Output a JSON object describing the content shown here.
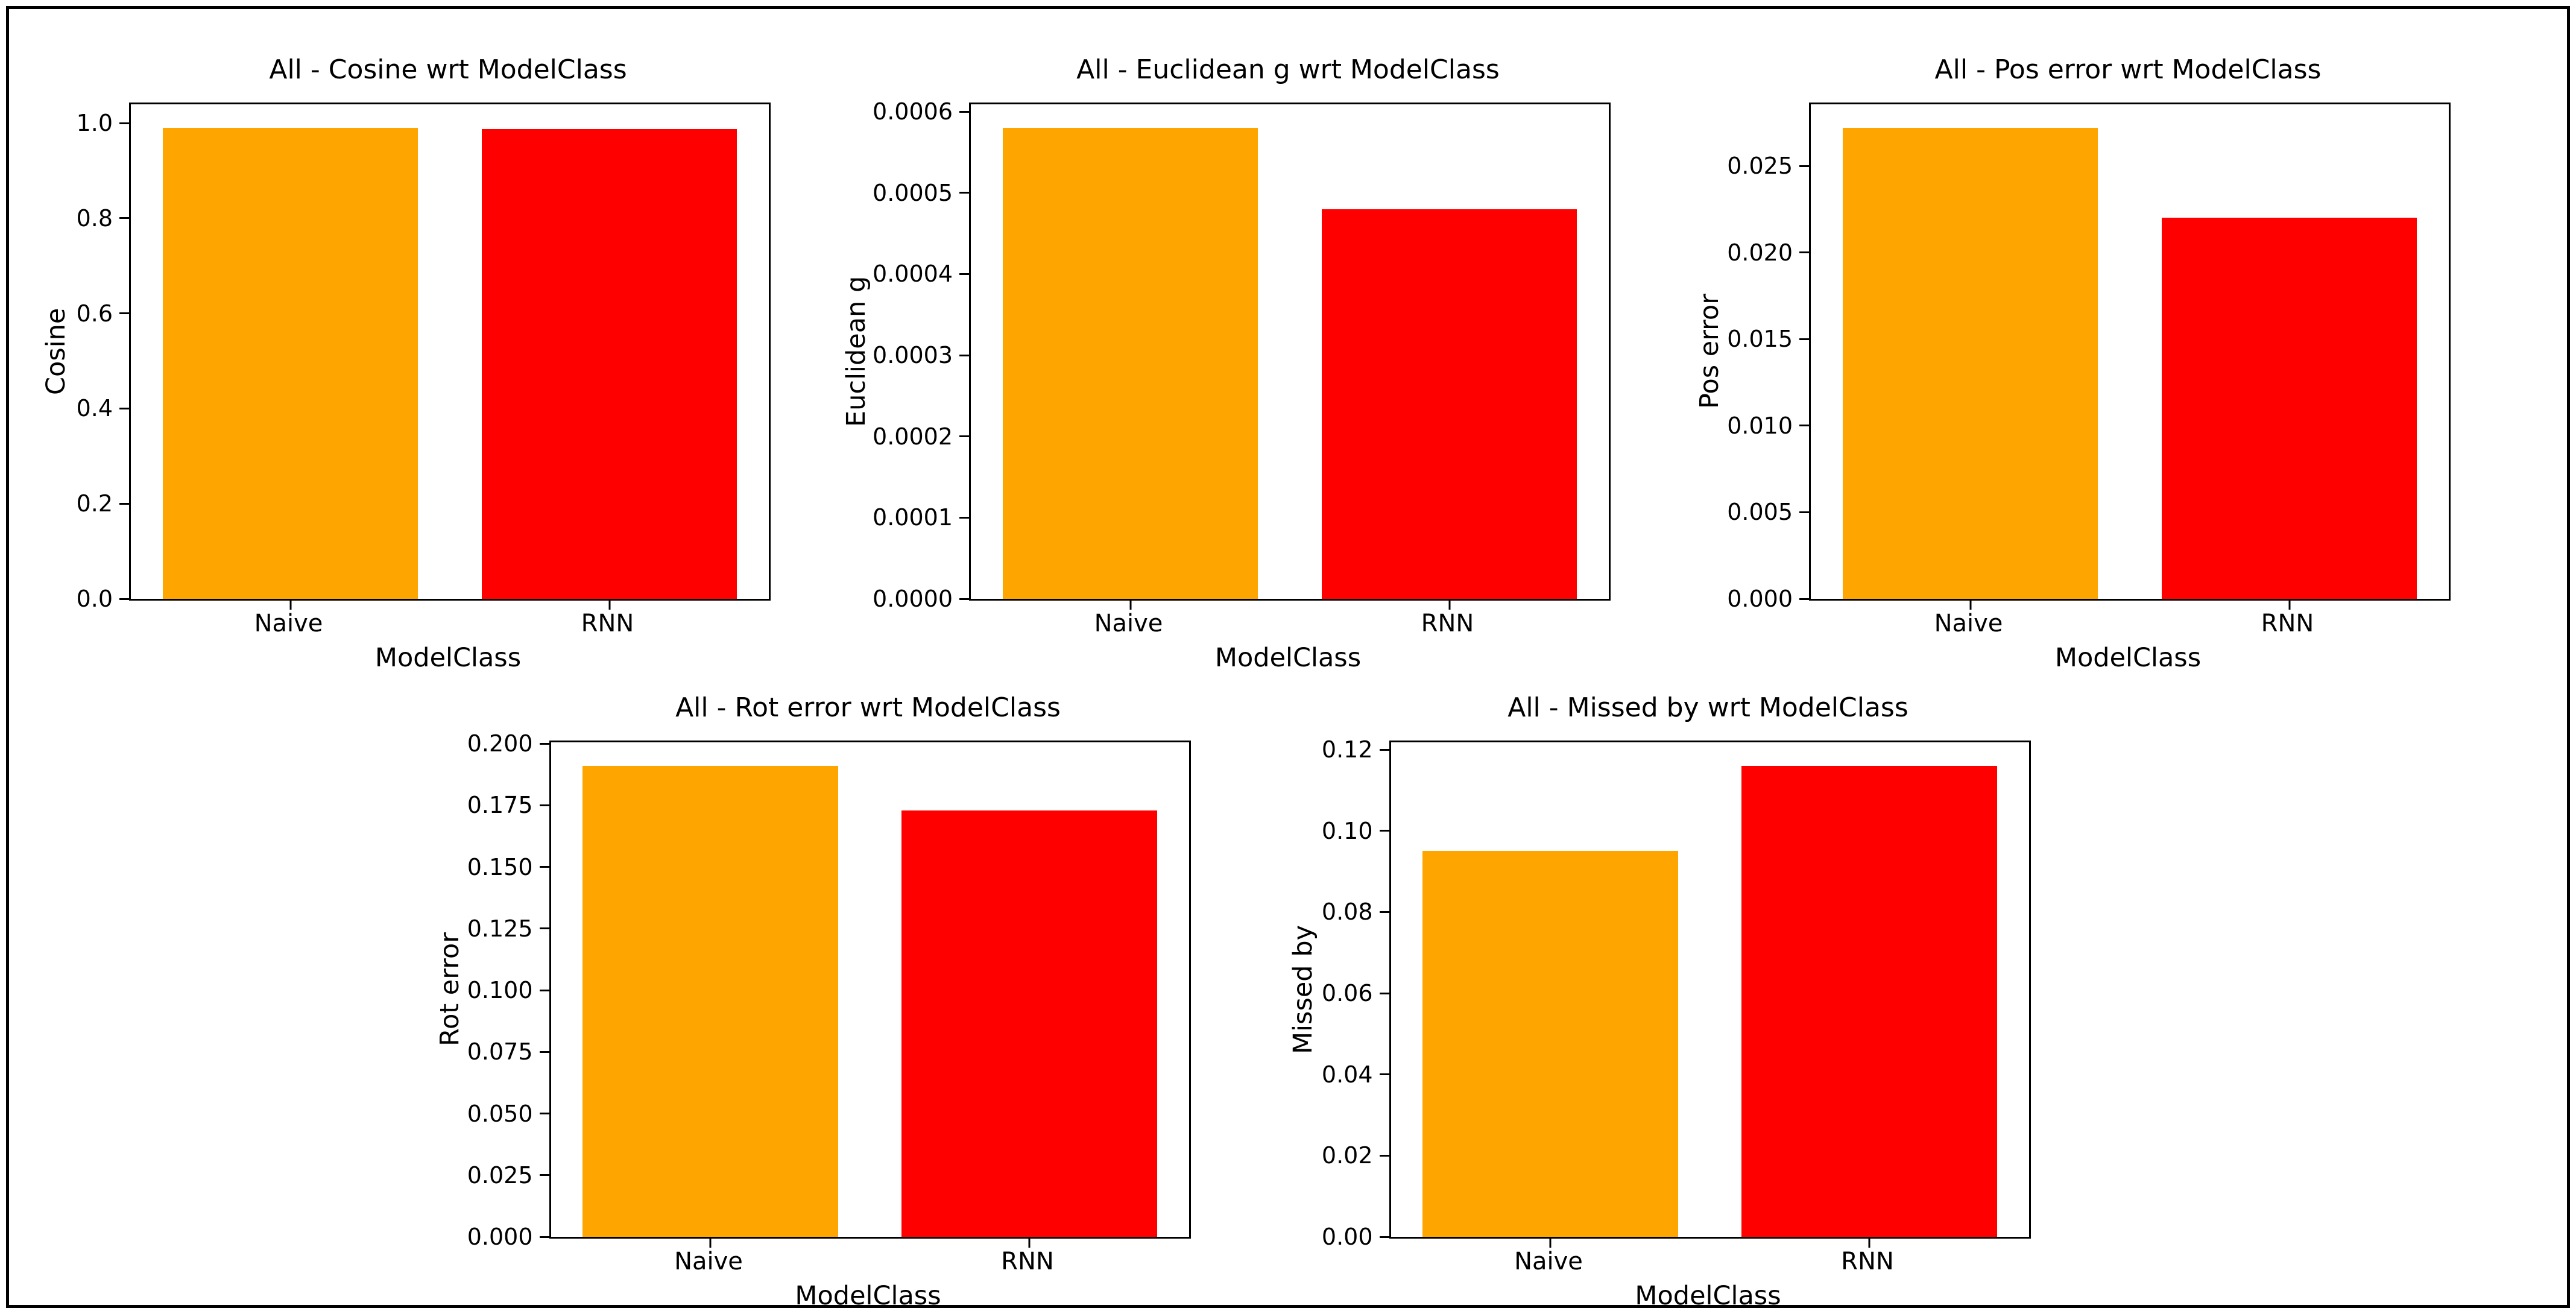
{
  "figure": {
    "background": "#FFFFFF",
    "frame_color": "#000000",
    "series_colors": {
      "Naive": "#FFA500",
      "RNN": "#FF0000"
    }
  },
  "chart_data": [
    {
      "type": "bar",
      "title": "All - Cosine wrt ModelClass",
      "xlabel": "ModelClass",
      "ylabel": "Cosine",
      "categories": [
        "Naive",
        "RNN"
      ],
      "values": [
        0.99,
        0.987
      ],
      "bar_colors": [
        "#FFA500",
        "#FF0000"
      ],
      "ytick_values": [
        0.0,
        0.2,
        0.4,
        0.6,
        0.8,
        1.0
      ],
      "ytick_labels": [
        "0.0",
        "0.2",
        "0.4",
        "0.6",
        "0.8",
        "1.0"
      ],
      "ylim": [
        0,
        1.0395
      ],
      "grid": false,
      "legend": null
    },
    {
      "type": "bar",
      "title": "All - Euclidean g wrt ModelClass",
      "xlabel": "ModelClass",
      "ylabel": "Euclidean g",
      "categories": [
        "Naive",
        "RNN"
      ],
      "values": [
        0.00058,
        0.00048
      ],
      "bar_colors": [
        "#FFA500",
        "#FF0000"
      ],
      "ytick_values": [
        0.0,
        0.0001,
        0.0002,
        0.0003,
        0.0004,
        0.0005,
        0.0006
      ],
      "ytick_labels": [
        "0.0000",
        "0.0001",
        "0.0002",
        "0.0003",
        "0.0004",
        "0.0005",
        "0.0006"
      ],
      "ylim": [
        0,
        0.000609
      ],
      "grid": false,
      "legend": null
    },
    {
      "type": "bar",
      "title": "All - Pos error wrt ModelClass",
      "xlabel": "ModelClass",
      "ylabel": "Pos error",
      "categories": [
        "Naive",
        "RNN"
      ],
      "values": [
        0.0272,
        0.022
      ],
      "bar_colors": [
        "#FFA500",
        "#FF0000"
      ],
      "ytick_values": [
        0.0,
        0.005,
        0.01,
        0.015,
        0.02,
        0.025
      ],
      "ytick_labels": [
        "0.000",
        "0.005",
        "0.010",
        "0.015",
        "0.020",
        "0.025"
      ],
      "ylim": [
        0,
        0.02856
      ],
      "grid": false,
      "legend": null
    },
    {
      "type": "bar",
      "title": "All - Rot error wrt ModelClass",
      "xlabel": "ModelClass",
      "ylabel": "Rot error",
      "categories": [
        "Naive",
        "RNN"
      ],
      "values": [
        0.191,
        0.173
      ],
      "bar_colors": [
        "#FFA500",
        "#FF0000"
      ],
      "ytick_values": [
        0.0,
        0.025,
        0.05,
        0.075,
        0.1,
        0.125,
        0.15,
        0.175,
        0.2
      ],
      "ytick_labels": [
        "0.000",
        "0.025",
        "0.050",
        "0.075",
        "0.100",
        "0.125",
        "0.150",
        "0.175",
        "0.200"
      ],
      "ylim": [
        0,
        0.20055
      ],
      "grid": false,
      "legend": null
    },
    {
      "type": "bar",
      "title": "All - Missed by wrt ModelClass",
      "xlabel": "ModelClass",
      "ylabel": "Missed by",
      "categories": [
        "Naive",
        "RNN"
      ],
      "values": [
        0.095,
        0.116
      ],
      "bar_colors": [
        "#FFA500",
        "#FF0000"
      ],
      "ytick_values": [
        0.0,
        0.02,
        0.04,
        0.06,
        0.08,
        0.1,
        0.12
      ],
      "ytick_labels": [
        "0.00",
        "0.02",
        "0.04",
        "0.06",
        "0.08",
        "0.10",
        "0.12"
      ],
      "ylim": [
        0,
        0.1218
      ],
      "grid": false,
      "legend": null
    }
  ]
}
